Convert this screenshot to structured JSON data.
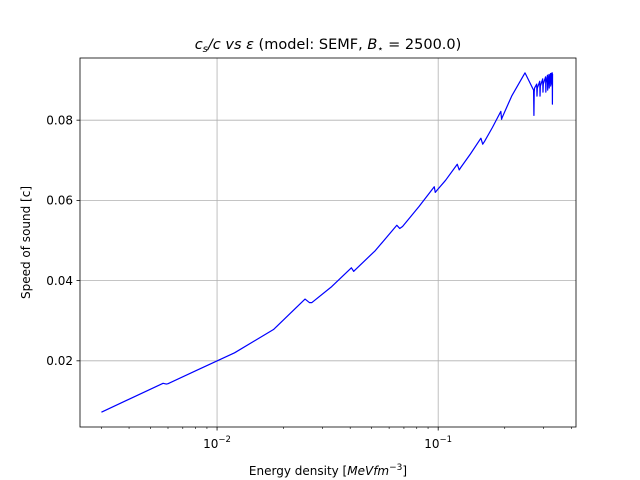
{
  "chart_data": {
    "type": "line",
    "title": "c_s/c vs ε (model: SEMF, B⋆ = 2500.0)",
    "title_parts": {
      "cs": "c",
      "cs_sub": "s",
      "slash_c": "/c vs ",
      "eps": "ε",
      "model": " (model: SEMF, ",
      "B": "B",
      "star": "⋆",
      "eq": " = 2500.0)"
    },
    "xlabel": "Energy density [MeVfm⁻³]",
    "xlabel_parts": {
      "prefix": "Energy density [",
      "unit": "MeVfm",
      "exp": "−3",
      "suffix": "]"
    },
    "ylabel": "Speed of sound [c]",
    "xscale": "log",
    "xlim": [
      0.0024,
      0.42
    ],
    "ylim": [
      0.0035,
      0.0955
    ],
    "grid": true,
    "color": "#0000ff",
    "xticks": [
      {
        "value": 0.01,
        "base": "10",
        "exp": "−2"
      },
      {
        "value": 0.1,
        "base": "10",
        "exp": "−1"
      }
    ],
    "minor_xticks": [
      0.003,
      0.004,
      0.005,
      0.006,
      0.007,
      0.008,
      0.009,
      0.02,
      0.03,
      0.04,
      0.05,
      0.06,
      0.07,
      0.08,
      0.09,
      0.2,
      0.3,
      0.4
    ],
    "yticks": [
      {
        "value": 0.02,
        "label": "0.02"
      },
      {
        "value": 0.04,
        "label": "0.04"
      },
      {
        "value": 0.06,
        "label": "0.06"
      },
      {
        "value": 0.08,
        "label": "0.08"
      }
    ],
    "series": [
      {
        "x": [
          0.003,
          0.0057,
          0.0059,
          0.006,
          0.008,
          0.012,
          0.018,
          0.025,
          0.0262,
          0.0268,
          0.033,
          0.0405,
          0.0415,
          0.042,
          0.052,
          0.065,
          0.067,
          0.069,
          0.082,
          0.096,
          0.097,
          0.099,
          0.108,
          0.122,
          0.1245,
          0.1265,
          0.14,
          0.156,
          0.159,
          0.162,
          0.176,
          0.192,
          0.1935,
          0.1945,
          0.215,
          0.247,
          0.27,
          0.271,
          0.2718,
          0.2728,
          0.279,
          0.2798,
          0.2808,
          0.288,
          0.2888,
          0.2898,
          0.297,
          0.2978,
          0.2988,
          0.306,
          0.3068,
          0.3078,
          0.312,
          0.3128,
          0.3138,
          0.317,
          0.3178,
          0.3188,
          0.322,
          0.3228,
          0.3238,
          0.325,
          0.3258,
          0.3268,
          0.328,
          0.3285,
          0.329
        ],
        "y": [
          0.0072,
          0.0144,
          0.0142,
          0.0143,
          0.0175,
          0.022,
          0.0278,
          0.0354,
          0.0345,
          0.0345,
          0.0385,
          0.0432,
          0.0423,
          0.0426,
          0.0475,
          0.0538,
          0.053,
          0.0535,
          0.0585,
          0.0634,
          0.062,
          0.0626,
          0.065,
          0.069,
          0.0676,
          0.0682,
          0.0716,
          0.0755,
          0.074,
          0.0747,
          0.0782,
          0.0822,
          0.0802,
          0.0806,
          0.086,
          0.0918,
          0.0875,
          0.0812,
          0.087,
          0.088,
          0.089,
          0.086,
          0.088,
          0.0897,
          0.086,
          0.0885,
          0.0903,
          0.087,
          0.089,
          0.0908,
          0.087,
          0.0893,
          0.0912,
          0.0875,
          0.0896,
          0.0914,
          0.088,
          0.09,
          0.0916,
          0.0885,
          0.0905,
          0.0917,
          0.089,
          0.0908,
          0.0918,
          0.084,
          0.0915
        ]
      }
    ]
  }
}
